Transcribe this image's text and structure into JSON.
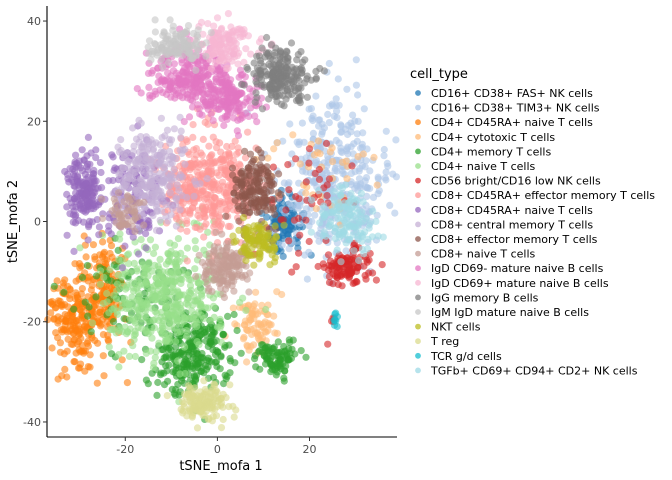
{
  "chart_data": {
    "type": "scatter",
    "title": "",
    "xlabel": "tSNE_mofa 1",
    "ylabel": "tSNE_mofa 2",
    "xlim": [
      -37,
      39
    ],
    "ylim": [
      -43,
      43
    ],
    "x_ticks": [
      -20,
      0,
      20
    ],
    "y_ticks": [
      -40,
      -20,
      0,
      20,
      40
    ],
    "grid": false,
    "legend_position": "right",
    "legend_title": "cell_type",
    "series": [
      {
        "name": "CD16+ CD38+ FAS+ NK cells",
        "color": "#1f77b4",
        "clusters": [
          {
            "cx": 14,
            "cy": -1,
            "sx": 2.2,
            "sy": 3,
            "n": 110
          }
        ]
      },
      {
        "name": "CD16+ CD38+ TIM3+ NK cells",
        "color": "#aec7e8",
        "clusters": [
          {
            "cx": 25,
            "cy": 8,
            "sx": 6,
            "sy": 8,
            "n": 380
          }
        ]
      },
      {
        "name": "CD4+ CD45RA+ naive T cells",
        "color": "#ff7f0e",
        "clusters": [
          {
            "cx": -31,
            "cy": -20,
            "sx": 3,
            "sy": 5,
            "n": 200
          },
          {
            "cx": -24,
            "cy": -14,
            "sx": 2.2,
            "sy": 6,
            "n": 150
          }
        ]
      },
      {
        "name": "CD4+ cytotoxic T cells",
        "color": "#ffbb78",
        "clusters": [
          {
            "cx": 8,
            "cy": -20,
            "sx": 2.2,
            "sy": 3,
            "n": 80
          },
          {
            "cx": 22,
            "cy": 10,
            "sx": 7,
            "sy": 6,
            "n": 40
          }
        ]
      },
      {
        "name": "CD4+ memory T cells",
        "color": "#2ca02c",
        "clusters": [
          {
            "cx": -6,
            "cy": -26,
            "sx": 4.5,
            "sy": 4.5,
            "n": 260
          },
          {
            "cx": 13,
            "cy": -27,
            "sx": 2.5,
            "sy": 1.5,
            "n": 90
          },
          {
            "cx": -18,
            "cy": -14,
            "sx": 6,
            "sy": 5,
            "n": 80
          }
        ]
      },
      {
        "name": "CD4+ naive T cells",
        "color": "#98df8a",
        "clusters": [
          {
            "cx": -12,
            "cy": -15,
            "sx": 6.5,
            "sy": 6,
            "n": 420
          }
        ]
      },
      {
        "name": "CD56 bright/CD16 low NK cells",
        "color": "#d62728",
        "clusters": [
          {
            "cx": 28,
            "cy": -9,
            "sx": 2.4,
            "sy": 1.8,
            "n": 110
          },
          {
            "cx": 20,
            "cy": 2,
            "sx": 6,
            "sy": 8,
            "n": 45
          },
          {
            "cx": 25,
            "cy": -18.5,
            "sx": 0.2,
            "sy": 0.8,
            "n": 4
          }
        ]
      },
      {
        "name": "CD8+ CD45RA+ effector memory T cells",
        "color": "#ff9896",
        "clusters": [
          {
            "cx": -2,
            "cy": 7,
            "sx": 5,
            "sy": 5,
            "n": 400
          }
        ]
      },
      {
        "name": "CD8+ CD45RA+ naive T cells",
        "color": "#9467bd",
        "clusters": [
          {
            "cx": -29,
            "cy": 6,
            "sx": 2,
            "sy": 3.5,
            "n": 160
          },
          {
            "cx": -18,
            "cy": 5,
            "sx": 3.5,
            "sy": 5,
            "n": 140
          }
        ]
      },
      {
        "name": "CD8+ central memory T cells",
        "color": "#c5b0d5",
        "clusters": [
          {
            "cx": -14,
            "cy": 9,
            "sx": 4,
            "sy": 4.5,
            "n": 240
          }
        ]
      },
      {
        "name": "CD8+ effector memory T cells",
        "color": "#8c564b",
        "clusters": [
          {
            "cx": 8,
            "cy": 6,
            "sx": 2.5,
            "sy": 3.5,
            "n": 160
          }
        ]
      },
      {
        "name": "CD8+ naive T cells",
        "color": "#c49c94",
        "clusters": [
          {
            "cx": 2,
            "cy": -9,
            "sx": 2.5,
            "sy": 2.5,
            "n": 150
          },
          {
            "cx": -20,
            "cy": 2,
            "sx": 2,
            "sy": 2,
            "n": 50
          }
        ]
      },
      {
        "name": "IgD CD69- mature naive B cells",
        "color": "#e377c2",
        "clusters": [
          {
            "cx": -6,
            "cy": 29,
            "sx": 4.5,
            "sy": 3,
            "n": 260
          },
          {
            "cx": 3,
            "cy": 24,
            "sx": 3.5,
            "sy": 2.2,
            "n": 150
          }
        ]
      },
      {
        "name": "IgD CD69+ mature naive B cells",
        "color": "#f7b6d2",
        "clusters": [
          {
            "cx": 2,
            "cy": 35,
            "sx": 3.5,
            "sy": 2,
            "n": 130
          }
        ]
      },
      {
        "name": "IgG memory B cells",
        "color": "#7f7f7f",
        "clusters": [
          {
            "cx": 13,
            "cy": 29,
            "sx": 3.3,
            "sy": 2.6,
            "n": 210
          }
        ]
      },
      {
        "name": "IgM IgD mature naive B cells",
        "color": "#c7c7c7",
        "clusters": [
          {
            "cx": -9,
            "cy": 35,
            "sx": 3,
            "sy": 2,
            "n": 120
          }
        ]
      },
      {
        "name": "NKT cells",
        "color": "#bcbd22",
        "clusters": [
          {
            "cx": 9,
            "cy": -4,
            "sx": 2.5,
            "sy": 2,
            "n": 100
          }
        ]
      },
      {
        "name": "T reg",
        "color": "#dbdb8d",
        "clusters": [
          {
            "cx": -3,
            "cy": -36,
            "sx": 2.5,
            "sy": 1.8,
            "n": 130
          }
        ]
      },
      {
        "name": "TCR g/d cells",
        "color": "#17becf",
        "clusters": [
          {
            "cx": 25.5,
            "cy": -19.5,
            "sx": 0.3,
            "sy": 0.7,
            "n": 8
          }
        ]
      },
      {
        "name": "TGFb+ CD69+ CD94+ CD2+ NK cells",
        "color": "#9edae5",
        "clusters": [
          {
            "cx": 28,
            "cy": 0,
            "sx": 3,
            "sy": 3,
            "n": 120
          }
        ]
      }
    ]
  }
}
